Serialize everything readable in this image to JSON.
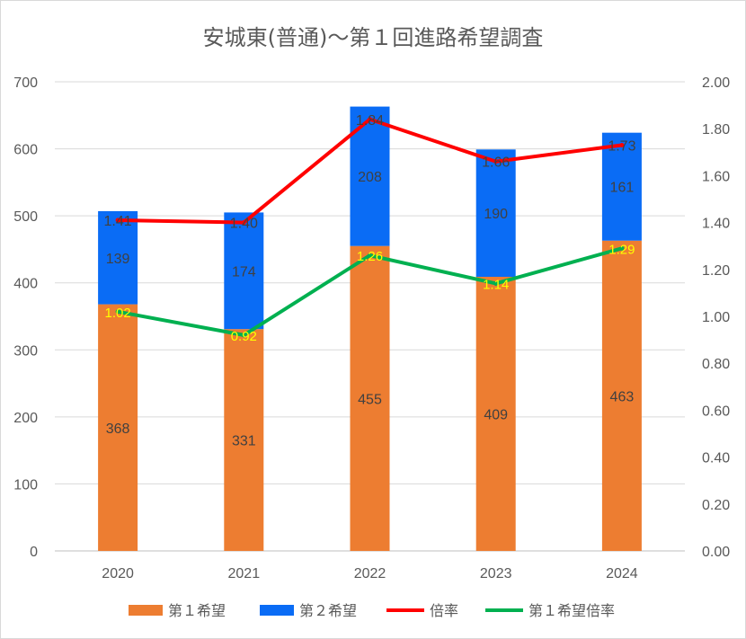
{
  "chart_data": {
    "type": "bar",
    "title": "安城東(普通)～第１回進路希望調査",
    "categories": [
      "2020",
      "2021",
      "2022",
      "2023",
      "2024"
    ],
    "y_left": {
      "ticks": [
        "0",
        "100",
        "200",
        "300",
        "400",
        "500",
        "600",
        "700"
      ],
      "ylim": [
        0,
        700
      ]
    },
    "y_right": {
      "ticks": [
        "0.00",
        "0.20",
        "0.40",
        "0.60",
        "0.80",
        "1.00",
        "1.20",
        "1.40",
        "1.60",
        "1.80",
        "2.00"
      ],
      "ylim": [
        0,
        2.0
      ]
    },
    "grid": true,
    "legend_position": "bottom",
    "series": [
      {
        "name": "第１希望",
        "kind": "bar",
        "axis": "left",
        "color": "#ed7d31",
        "values": [
          368,
          331,
          455,
          409,
          463
        ],
        "labels": [
          "368",
          "331",
          "455",
          "409",
          "463"
        ]
      },
      {
        "name": "第２希望",
        "kind": "bar",
        "axis": "left",
        "color": "#0a6cf5",
        "values": [
          139,
          174,
          208,
          190,
          161
        ],
        "labels": [
          "139",
          "174",
          "208",
          "190",
          "161"
        ]
      },
      {
        "name": "倍率",
        "kind": "line",
        "axis": "right",
        "color": "#ff0000",
        "values": [
          1.41,
          1.4,
          1.84,
          1.66,
          1.73
        ],
        "labels": [
          "1.41",
          "1.40",
          "1.84",
          "1.66",
          "1.73"
        ]
      },
      {
        "name": "第１希望倍率",
        "kind": "line",
        "axis": "right",
        "color": "#00b050",
        "values": [
          1.02,
          0.92,
          1.26,
          1.14,
          1.29
        ],
        "labels": [
          "1.02",
          "0.92",
          "1.26",
          "1.14",
          "1.29"
        ]
      }
    ]
  }
}
